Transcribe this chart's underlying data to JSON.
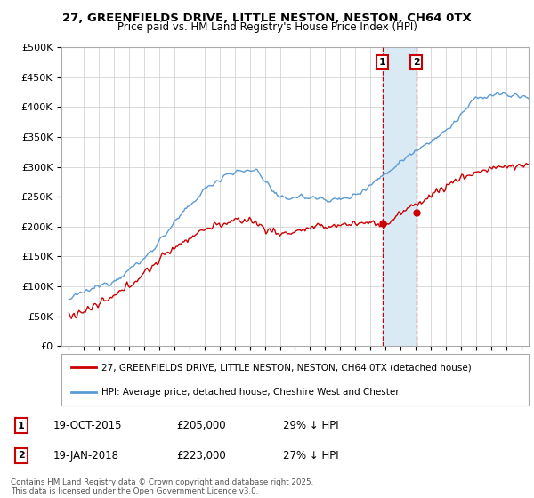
{
  "title": "27, GREENFIELDS DRIVE, LITTLE NESTON, NESTON, CH64 0TX",
  "subtitle": "Price paid vs. HM Land Registry's House Price Index (HPI)",
  "legend_label_red": "27, GREENFIELDS DRIVE, LITTLE NESTON, NESTON, CH64 0TX (detached house)",
  "legend_label_blue": "HPI: Average price, detached house, Cheshire West and Chester",
  "footer": "Contains HM Land Registry data © Crown copyright and database right 2025.\nThis data is licensed under the Open Government Licence v3.0.",
  "sale1_label": "1",
  "sale1_date": "19-OCT-2015",
  "sale1_price": "£205,000",
  "sale1_hpi": "29% ↓ HPI",
  "sale2_label": "2",
  "sale2_date": "19-JAN-2018",
  "sale2_price": "£223,000",
  "sale2_hpi": "27% ↓ HPI",
  "sale1_x": 2015.8,
  "sale2_x": 2018.05,
  "sale1_y": 205000,
  "sale2_y": 223000,
  "ylim": [
    0,
    500000
  ],
  "xlim_start": 1994.5,
  "xlim_end": 2025.5,
  "hpi_color": "#5b9bd5",
  "price_color": "#cc0000",
  "shade_color": "#daeaf5",
  "background_color": "#ffffff",
  "grid_color": "#cccccc"
}
